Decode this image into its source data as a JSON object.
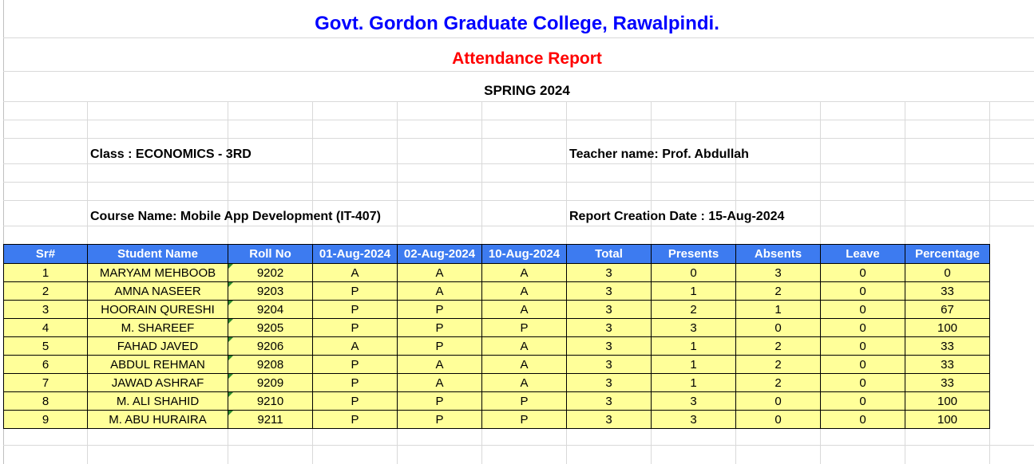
{
  "report": {
    "college": "Govt. Gordon Graduate College, Rawalpindi.",
    "title": "Attendance Report",
    "term": "SPRING 2024",
    "class_label": "Class : ECONOMICS - 3RD",
    "teacher_label": "Teacher name: Prof. Abdullah",
    "course_label": "Course Name: Mobile App Development (IT-407)",
    "date_label": "Report Creation Date : 15-Aug-2024"
  },
  "table": {
    "headers": [
      "Sr#",
      "Student Name",
      "Roll No",
      "01-Aug-2024",
      "02-Aug-2024",
      "10-Aug-2024",
      "Total",
      "Presents",
      "Absents",
      "Leave",
      "Percentage"
    ],
    "rows": [
      [
        "1",
        "MARYAM MEHBOOB",
        "9202",
        "A",
        "A",
        "A",
        "3",
        "0",
        "3",
        "0",
        "0"
      ],
      [
        "2",
        "AMNA NASEER",
        "9203",
        "P",
        "A",
        "A",
        "3",
        "1",
        "2",
        "0",
        "33"
      ],
      [
        "3",
        "HOORAIN QURESHI",
        "9204",
        "P",
        "P",
        "A",
        "3",
        "2",
        "1",
        "0",
        "67"
      ],
      [
        "4",
        "M. SHAREEF",
        "9205",
        "P",
        "P",
        "P",
        "3",
        "3",
        "0",
        "0",
        "100"
      ],
      [
        "5",
        "FAHAD JAVED",
        "9206",
        "A",
        "P",
        "A",
        "3",
        "1",
        "2",
        "0",
        "33"
      ],
      [
        "6",
        "ABDUL REHMAN",
        "9208",
        "P",
        "A",
        "A",
        "3",
        "1",
        "2",
        "0",
        "33"
      ],
      [
        "7",
        "JAWAD ASHRAF",
        "9209",
        "P",
        "A",
        "A",
        "3",
        "1",
        "2",
        "0",
        "33"
      ],
      [
        "8",
        "M. ALI SHAHID",
        "9210",
        "P",
        "P",
        "P",
        "3",
        "3",
        "0",
        "0",
        "100"
      ],
      [
        "9",
        "M. ABU HURAIRA",
        "9211",
        "P",
        "P",
        "P",
        "3",
        "3",
        "0",
        "0",
        "100"
      ]
    ]
  },
  "colors": {
    "college": "#0000ff",
    "title": "#ff0000",
    "header_fill": "#3d7bf0",
    "row_fill": "#ffff99",
    "gridline": "#d9d9d9"
  }
}
